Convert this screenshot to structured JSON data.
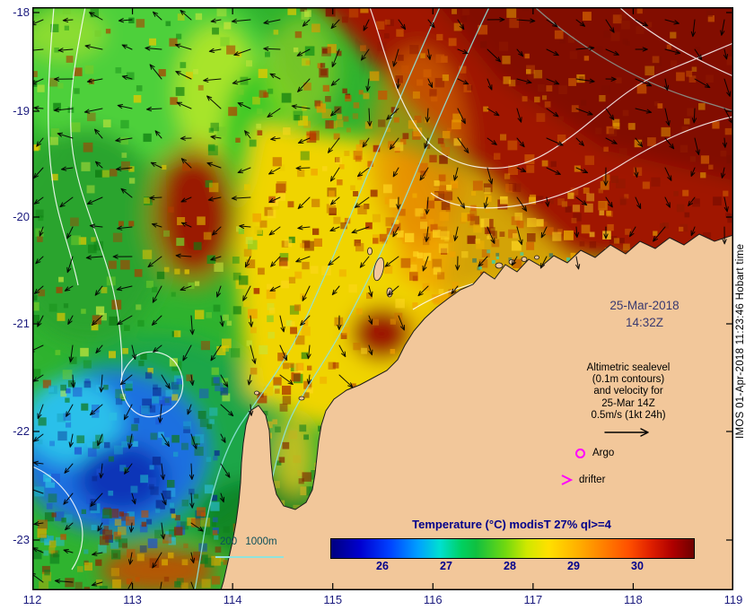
{
  "axes": {
    "x_tick_labels": [
      "112",
      "113",
      "114",
      "115",
      "116",
      "117",
      "118",
      "119"
    ],
    "y_tick_labels": [
      "-18",
      "-19",
      "-20",
      "-21",
      "-22",
      "-23"
    ]
  },
  "overlay": {
    "date": "25-Mar-2018",
    "time": "14:32Z",
    "annotation_lines": [
      "Altimetric sealevel",
      "(0.1m contours)",
      "and velocity for",
      "25-Mar 14Z",
      "0.5m/s (1kt 24h)"
    ],
    "argo_label": "Argo",
    "drifter_label": "drifter",
    "bathy_scale_label": "200 1000m"
  },
  "colorbar": {
    "title": "Temperature (°C) modisT 27% ql>=4",
    "tick_labels": [
      "26",
      "27",
      "28",
      "29",
      "30"
    ]
  },
  "watermark": "IMOS 01-Apr-2018 11:23:46 Hobart time",
  "colors": {
    "land": "#f2c79a",
    "marker_magenta": "#ff00ff",
    "bathy_contour": "#8fe3dc",
    "sealevel_contour": "#ffffff",
    "axis_text": "#1b1b7e",
    "title_text": "#00008b",
    "annotation_text": "#000000"
  }
}
